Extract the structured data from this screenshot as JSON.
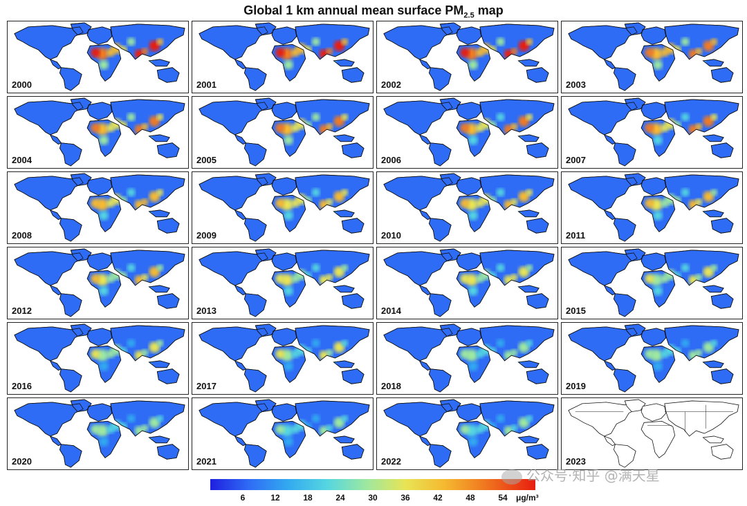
{
  "title_main": "Global 1 km annual mean surface PM",
  "title_sub": "2.5",
  "title_tail": " map",
  "years": [
    "2000",
    "2001",
    "2002",
    "2003",
    "2004",
    "2005",
    "2006",
    "2007",
    "2008",
    "2009",
    "2010",
    "2011",
    "2012",
    "2013",
    "2014",
    "2015",
    "2016",
    "2017",
    "2018",
    "2019",
    "2020",
    "2021",
    "2022",
    "2023"
  ],
  "empty_panels": [
    "2023"
  ],
  "colorbar": {
    "ticks": [
      "6",
      "12",
      "18",
      "24",
      "30",
      "36",
      "42",
      "48",
      "54"
    ],
    "unit": "μg/m³",
    "colors": [
      "#1f1fe0",
      "#2f6cf5",
      "#33aaf0",
      "#55d6e0",
      "#9de8a0",
      "#e8e455",
      "#f5b930",
      "#f07a20",
      "#e81e10"
    ]
  },
  "watermark": "公众号·知乎 @满天星"
}
